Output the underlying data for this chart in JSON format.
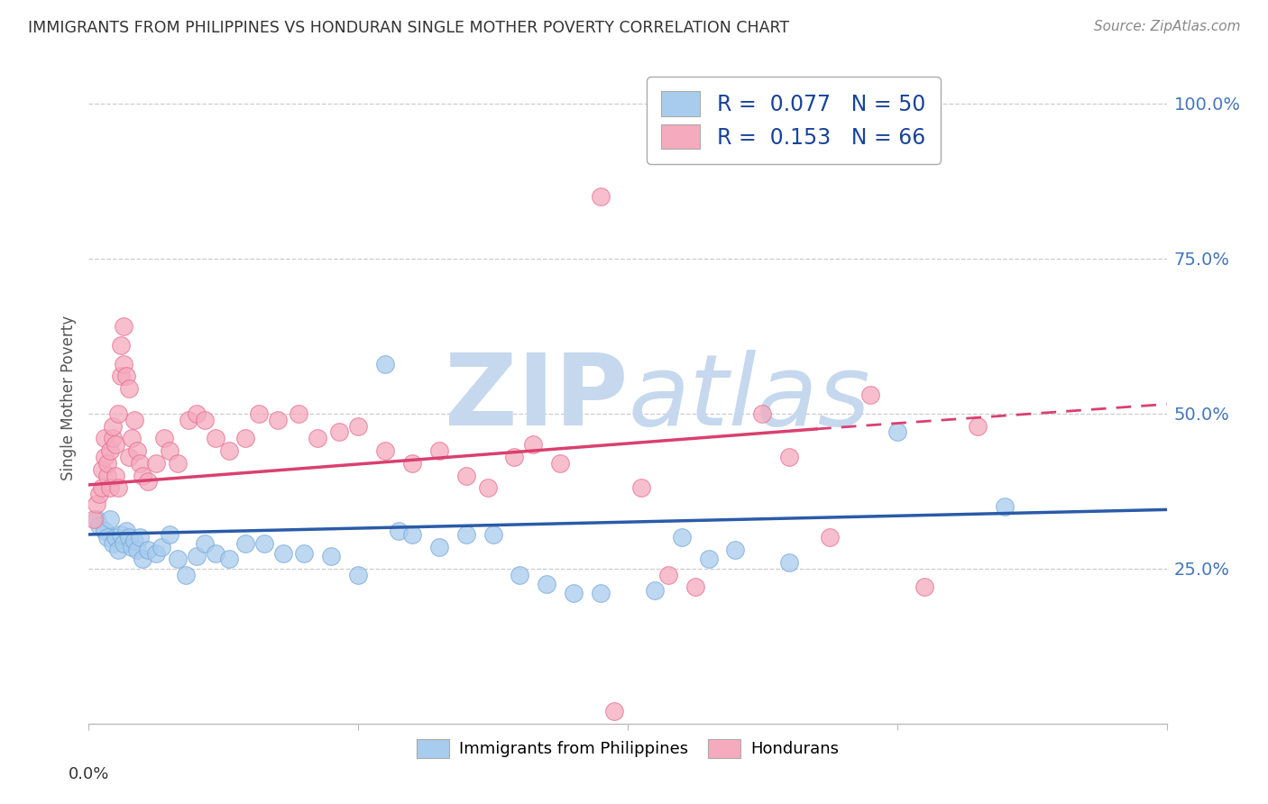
{
  "title": "IMMIGRANTS FROM PHILIPPINES VS HONDURAN SINGLE MOTHER POVERTY CORRELATION CHART",
  "source": "Source: ZipAtlas.com",
  "ylabel": "Single Mother Poverty",
  "ytick_labels": [
    "100.0%",
    "75.0%",
    "50.0%",
    "25.0%"
  ],
  "ytick_values": [
    1.0,
    0.75,
    0.5,
    0.25
  ],
  "xlim": [
    0.0,
    0.4
  ],
  "ylim": [
    0.0,
    1.05
  ],
  "blue_color": "#A8CCEE",
  "pink_color": "#F5AABE",
  "blue_edge_color": "#7AAAD8",
  "pink_edge_color": "#E87090",
  "blue_line_color": "#2B5BA8",
  "pink_line_color": "#D94070",
  "blue_scatter": [
    [
      0.003,
      0.33
    ],
    [
      0.004,
      0.32
    ],
    [
      0.006,
      0.31
    ],
    [
      0.007,
      0.3
    ],
    [
      0.008,
      0.33
    ],
    [
      0.009,
      0.29
    ],
    [
      0.01,
      0.3
    ],
    [
      0.011,
      0.28
    ],
    [
      0.012,
      0.305
    ],
    [
      0.013,
      0.29
    ],
    [
      0.014,
      0.31
    ],
    [
      0.015,
      0.3
    ],
    [
      0.016,
      0.285
    ],
    [
      0.017,
      0.295
    ],
    [
      0.018,
      0.28
    ],
    [
      0.019,
      0.3
    ],
    [
      0.02,
      0.265
    ],
    [
      0.022,
      0.28
    ],
    [
      0.025,
      0.275
    ],
    [
      0.027,
      0.285
    ],
    [
      0.03,
      0.305
    ],
    [
      0.033,
      0.265
    ],
    [
      0.036,
      0.24
    ],
    [
      0.04,
      0.27
    ],
    [
      0.043,
      0.29
    ],
    [
      0.047,
      0.275
    ],
    [
      0.052,
      0.265
    ],
    [
      0.058,
      0.29
    ],
    [
      0.065,
      0.29
    ],
    [
      0.072,
      0.275
    ],
    [
      0.08,
      0.275
    ],
    [
      0.09,
      0.27
    ],
    [
      0.1,
      0.24
    ],
    [
      0.11,
      0.58
    ],
    [
      0.115,
      0.31
    ],
    [
      0.12,
      0.305
    ],
    [
      0.13,
      0.285
    ],
    [
      0.14,
      0.305
    ],
    [
      0.15,
      0.305
    ],
    [
      0.16,
      0.24
    ],
    [
      0.17,
      0.225
    ],
    [
      0.18,
      0.21
    ],
    [
      0.19,
      0.21
    ],
    [
      0.21,
      0.215
    ],
    [
      0.22,
      0.3
    ],
    [
      0.23,
      0.265
    ],
    [
      0.24,
      0.28
    ],
    [
      0.26,
      0.26
    ],
    [
      0.3,
      0.47
    ],
    [
      0.34,
      0.35
    ]
  ],
  "pink_scatter": [
    [
      0.002,
      0.33
    ],
    [
      0.003,
      0.355
    ],
    [
      0.004,
      0.37
    ],
    [
      0.005,
      0.38
    ],
    [
      0.005,
      0.41
    ],
    [
      0.006,
      0.43
    ],
    [
      0.006,
      0.46
    ],
    [
      0.007,
      0.4
    ],
    [
      0.007,
      0.42
    ],
    [
      0.008,
      0.38
    ],
    [
      0.008,
      0.44
    ],
    [
      0.009,
      0.46
    ],
    [
      0.009,
      0.48
    ],
    [
      0.01,
      0.45
    ],
    [
      0.01,
      0.4
    ],
    [
      0.011,
      0.38
    ],
    [
      0.011,
      0.5
    ],
    [
      0.012,
      0.56
    ],
    [
      0.012,
      0.61
    ],
    [
      0.013,
      0.64
    ],
    [
      0.013,
      0.58
    ],
    [
      0.014,
      0.56
    ],
    [
      0.015,
      0.54
    ],
    [
      0.015,
      0.43
    ],
    [
      0.016,
      0.46
    ],
    [
      0.017,
      0.49
    ],
    [
      0.018,
      0.44
    ],
    [
      0.019,
      0.42
    ],
    [
      0.02,
      0.4
    ],
    [
      0.022,
      0.39
    ],
    [
      0.025,
      0.42
    ],
    [
      0.028,
      0.46
    ],
    [
      0.03,
      0.44
    ],
    [
      0.033,
      0.42
    ],
    [
      0.037,
      0.49
    ],
    [
      0.04,
      0.5
    ],
    [
      0.043,
      0.49
    ],
    [
      0.047,
      0.46
    ],
    [
      0.052,
      0.44
    ],
    [
      0.058,
      0.46
    ],
    [
      0.063,
      0.5
    ],
    [
      0.07,
      0.49
    ],
    [
      0.078,
      0.5
    ],
    [
      0.085,
      0.46
    ],
    [
      0.093,
      0.47
    ],
    [
      0.1,
      0.48
    ],
    [
      0.11,
      0.44
    ],
    [
      0.12,
      0.42
    ],
    [
      0.13,
      0.44
    ],
    [
      0.14,
      0.4
    ],
    [
      0.148,
      0.38
    ],
    [
      0.158,
      0.43
    ],
    [
      0.165,
      0.45
    ],
    [
      0.175,
      0.42
    ],
    [
      0.19,
      0.85
    ],
    [
      0.195,
      0.02
    ],
    [
      0.205,
      0.38
    ],
    [
      0.215,
      0.24
    ],
    [
      0.225,
      0.22
    ],
    [
      0.25,
      0.5
    ],
    [
      0.26,
      0.43
    ],
    [
      0.275,
      0.3
    ],
    [
      0.29,
      0.53
    ],
    [
      0.31,
      0.22
    ],
    [
      0.33,
      0.48
    ]
  ],
  "blue_trendline_solid": [
    [
      0.0,
      0.305
    ],
    [
      0.4,
      0.345
    ]
  ],
  "pink_trendline_solid": [
    [
      0.0,
      0.385
    ],
    [
      0.27,
      0.475
    ]
  ],
  "pink_trendline_dashed": [
    [
      0.27,
      0.475
    ],
    [
      0.4,
      0.515
    ]
  ],
  "watermark_zip": "ZIP",
  "watermark_atlas": "atlas",
  "watermark_color": "#C5D8EE",
  "background_color": "#FFFFFF",
  "grid_color": "#CCCCCC",
  "title_color": "#333333",
  "source_color": "#888888",
  "ytick_color": "#4477BB",
  "ylabel_color": "#555555",
  "legend_text_color": "#1A4499",
  "legend_label_color": "#333333"
}
